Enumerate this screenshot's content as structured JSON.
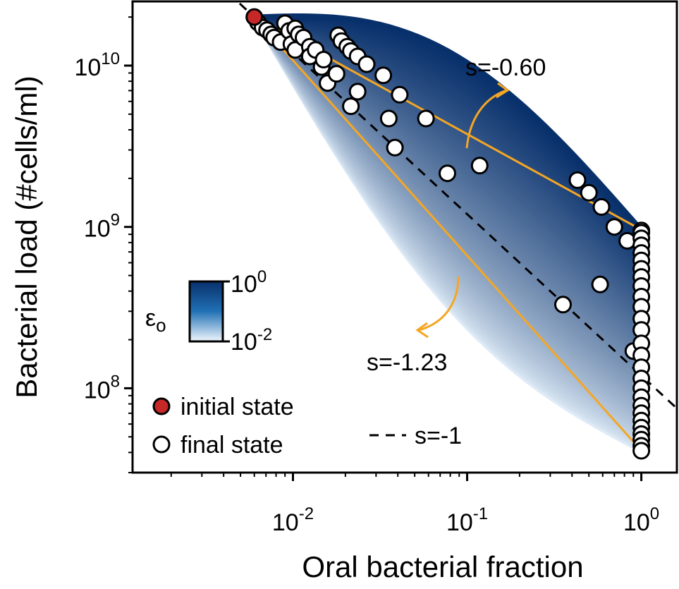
{
  "chart_data": {
    "type": "scatter",
    "xlabel": "Oral bacterial fraction",
    "ylabel": "Bacterial load (#cells/ml)",
    "xscale": "log",
    "yscale": "log",
    "xlim": [
      0.0012,
      1.6
    ],
    "ylim": [
      30000000,
      25000000000
    ],
    "x_ticks": [
      {
        "base": "10",
        "exp": "-2",
        "value": 0.01
      },
      {
        "base": "10",
        "exp": "-1",
        "value": 0.1
      },
      {
        "base": "10",
        "exp": "0",
        "value": 1
      }
    ],
    "y_ticks": [
      {
        "base": "10",
        "exp": "8",
        "value": 100000000
      },
      {
        "base": "10",
        "exp": "9",
        "value": 1000000000
      },
      {
        "base": "10",
        "exp": "10",
        "value": 10000000000
      }
    ],
    "colors": {
      "band_dark": "#08306b",
      "band_light": "#deebf7",
      "triangle": "#f5a623",
      "initial": "#c62828",
      "marker_edge": "#000000",
      "dashed": "#000000"
    },
    "initial_state": {
      "label": "initial state",
      "x": 0.006,
      "y": 20000000000
    },
    "final_states": {
      "label": "final state",
      "points": [
        [
          0.0063,
          18500000000
        ],
        [
          0.0067,
          17200000000
        ],
        [
          0.0071,
          16600000000
        ],
        [
          0.0075,
          15600000000
        ],
        [
          0.0078,
          14900000000
        ],
        [
          0.0085,
          14000000000
        ],
        [
          0.009,
          18300000000
        ],
        [
          0.0095,
          16400000000
        ],
        [
          0.0098,
          13600000000
        ],
        [
          0.0103,
          12500000000
        ],
        [
          0.0103,
          17000000000
        ],
        [
          0.0108,
          15600000000
        ],
        [
          0.0115,
          14900000000
        ],
        [
          0.0125,
          13100000000
        ],
        [
          0.0125,
          11400000000
        ],
        [
          0.0135,
          12500000000
        ],
        [
          0.0146,
          9800000000
        ],
        [
          0.015,
          10900000000
        ],
        [
          0.0158,
          7800000000
        ],
        [
          0.0178,
          8900000000
        ],
        [
          0.0182,
          15400000000
        ],
        [
          0.019,
          14200000000
        ],
        [
          0.0205,
          13100000000
        ],
        [
          0.0215,
          12300000000
        ],
        [
          0.0215,
          5600000000
        ],
        [
          0.0235,
          6900000000
        ],
        [
          0.0235,
          11400000000
        ],
        [
          0.0265,
          10200000000
        ],
        [
          0.033,
          8700000000
        ],
        [
          0.0355,
          4700000000
        ],
        [
          0.0385,
          3100000000
        ],
        [
          0.041,
          6600000000
        ],
        [
          0.058,
          4700000000
        ],
        [
          0.077,
          2150000000
        ],
        [
          0.118,
          2400000000
        ],
        [
          0.355,
          330000000
        ],
        [
          0.43,
          1950000000
        ],
        [
          0.5,
          1630000000
        ],
        [
          0.58,
          440000000
        ],
        [
          0.59,
          1330000000
        ],
        [
          0.7,
          1000000000
        ],
        [
          0.83,
          820000000
        ],
        [
          0.9,
          170000000
        ],
        [
          1.0,
          950000000
        ],
        [
          1.0,
          920000000
        ],
        [
          1.0,
          850000000
        ],
        [
          1.0,
          770000000
        ],
        [
          1.0,
          690000000
        ],
        [
          1.0,
          620000000
        ],
        [
          1.0,
          550000000
        ],
        [
          1.0,
          490000000
        ],
        [
          1.0,
          430000000
        ],
        [
          1.0,
          370000000
        ],
        [
          1.0,
          320000000
        ],
        [
          1.0,
          270000000
        ],
        [
          1.0,
          230000000
        ],
        [
          1.0,
          190000000
        ],
        [
          1.0,
          160000000
        ],
        [
          1.0,
          135000000
        ],
        [
          1.0,
          115000000
        ],
        [
          1.0,
          100000000
        ],
        [
          1.0,
          88000000
        ],
        [
          1.0,
          78000000
        ],
        [
          1.0,
          70000000
        ],
        [
          1.0,
          63000000
        ],
        [
          1.0,
          57000000
        ],
        [
          1.0,
          52000000
        ],
        [
          1.0,
          48000000
        ],
        [
          1.0,
          44000000
        ],
        [
          1.0,
          41000000
        ]
      ]
    },
    "triangle": {
      "vertices": [
        [
          0.006,
          20000000000
        ],
        [
          1.0,
          960000000
        ],
        [
          1.0,
          41000000
        ]
      ]
    },
    "slopes": {
      "upper": "s=-0.60",
      "lower": "s=-1.23",
      "reference": "s=-1"
    },
    "colorbar": {
      "symbol": "ε",
      "subscript": "o",
      "top": {
        "base": "10",
        "exp": "0"
      },
      "bottom": {
        "base": "10",
        "exp": "-2"
      }
    },
    "legend": {
      "position": "bottom-left"
    }
  }
}
